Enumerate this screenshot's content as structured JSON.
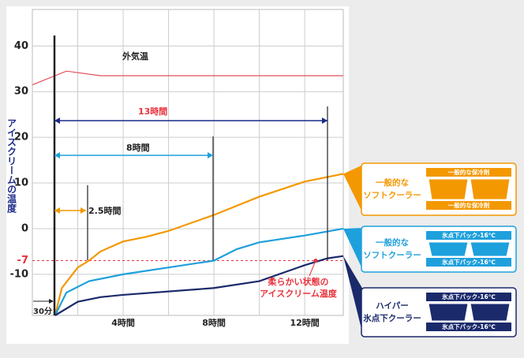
{
  "chart_data": {
    "type": "line",
    "xlim": [
      0,
      13.7
    ],
    "ylim": [
      -19,
      48
    ],
    "xticks": [
      {
        "value": 4,
        "label": "4時間"
      },
      {
        "value": 8,
        "label": "8時間"
      },
      {
        "value": 12,
        "label": "12時間"
      }
    ],
    "xgrid": [
      2,
      4,
      6,
      8,
      10,
      12
    ],
    "yticks": [
      40,
      30,
      20,
      10,
      0,
      -10
    ],
    "ylabel": "アイスクリームの温度",
    "threshold": {
      "value": -7,
      "label": "-7",
      "color": "#e8323c"
    },
    "series": [
      {
        "name": "外気温",
        "color": "#e0505a",
        "x": [
          0,
          1.5,
          3,
          13.7
        ],
        "values": [
          31.5,
          34.5,
          33.5,
          33.5
        ]
      },
      {
        "color": "#f39800",
        "x": [
          1,
          1.3,
          2,
          2.5,
          3,
          4,
          5,
          6,
          8,
          10,
          12,
          13.7
        ],
        "values": [
          -19,
          -13,
          -8.5,
          -7,
          -5,
          -2.8,
          -1.8,
          -0.5,
          3,
          7,
          10.3,
          12
        ]
      },
      {
        "color": "#1ea0dc",
        "x": [
          1,
          1.5,
          2.5,
          4,
          6,
          8,
          9,
          10,
          12,
          13.7
        ],
        "values": [
          -19,
          -14,
          -11.5,
          -10,
          -8.5,
          -7,
          -4.5,
          -3,
          -1.5,
          0
        ]
      },
      {
        "color": "#1b2a6b",
        "x": [
          1,
          2,
          3,
          4,
          8,
          10,
          12,
          13,
          13.7
        ],
        "values": [
          -19,
          -16,
          -15,
          -14.5,
          -13,
          -11.5,
          -8,
          -6.5,
          -6
        ]
      }
    ],
    "annotations": {
      "d13": "13時間",
      "d8": "8時間",
      "d25": "2.5時間",
      "start": "30分",
      "soft": [
        "柔らかい状態の",
        "アイスクリーム温度"
      ]
    }
  },
  "panels": [
    {
      "label": [
        "一般的な",
        "ソフトクーラー"
      ],
      "pack_top": "一般的な保冷剤",
      "pack_bottom": "一般的な保冷剤"
    },
    {
      "label": [
        "一般的な",
        "ソフトクーラー"
      ],
      "pack_top": "氷点下パック-16℃",
      "pack_bottom": "氷点下パック-16℃"
    },
    {
      "label": [
        "ハイパー",
        "氷点下クーラー"
      ],
      "pack_top": "氷点下パック-16℃",
      "pack_bottom": "氷点下パック-16℃"
    }
  ]
}
